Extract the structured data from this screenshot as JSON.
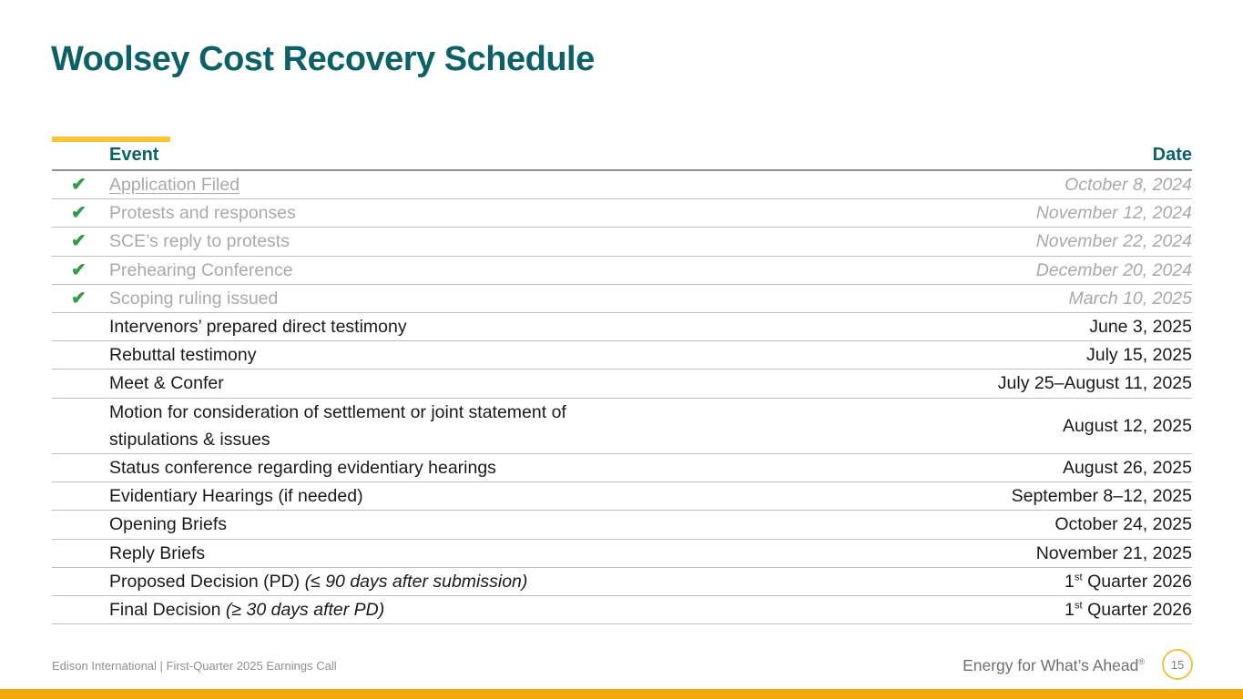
{
  "slide": {
    "title": "Woolsey Cost Recovery Schedule",
    "footer_left": "Edison International | First-Quarter 2025 Earnings Call",
    "tagline": "Energy for What’s Ahead",
    "tagline_reg": "®",
    "page_number": "15"
  },
  "colors": {
    "title_teal": "#0B6167",
    "accent_gold": "#FBC437",
    "bottom_bar_gold": "#F2A907",
    "badge_ring_gold": "#F0C43C",
    "check_green": "#2F9E44",
    "completed_gray": "#A9A9A9"
  },
  "table": {
    "check_glyph": "✔",
    "headers": {
      "event": "Event",
      "date": "Date"
    },
    "rows": [
      {
        "completed": true,
        "event": [
          {
            "text": "Application Filed",
            "underline": true
          }
        ],
        "date": [
          {
            "text": "October 8, 2024"
          }
        ]
      },
      {
        "completed": true,
        "event": [
          {
            "text": "Protests and responses"
          }
        ],
        "date": [
          {
            "text": "November 12, 2024"
          }
        ]
      },
      {
        "completed": true,
        "event": [
          {
            "text": "SCE’s reply to protests"
          }
        ],
        "date": [
          {
            "text": "November 22, 2024"
          }
        ]
      },
      {
        "completed": true,
        "event": [
          {
            "text": "Prehearing Conference"
          }
        ],
        "date": [
          {
            "text": "December 20, 2024"
          }
        ]
      },
      {
        "completed": true,
        "event": [
          {
            "text": "Scoping ruling issued"
          }
        ],
        "date": [
          {
            "text": "March 10, 2025"
          }
        ]
      },
      {
        "completed": false,
        "event": [
          {
            "text": "Intervenors’ prepared direct testimony"
          }
        ],
        "date": [
          {
            "text": "June 3, 2025"
          }
        ]
      },
      {
        "completed": false,
        "event": [
          {
            "text": "Rebuttal testimony"
          }
        ],
        "date": [
          {
            "text": "July 15, 2025"
          }
        ]
      },
      {
        "completed": false,
        "event": [
          {
            "text": "Meet & Confer"
          }
        ],
        "date": [
          {
            "text": "July 25–August 11, 2025"
          }
        ]
      },
      {
        "completed": false,
        "event": [
          {
            "text": "Motion for consideration of settlement or joint statement of"
          },
          {
            "br": true
          },
          {
            "text": "stipulations & issues"
          }
        ],
        "date": [
          {
            "text": "August 12, 2025"
          }
        ]
      },
      {
        "completed": false,
        "event": [
          {
            "text": "Status conference regarding evidentiary hearings"
          }
        ],
        "date": [
          {
            "text": "August 26, 2025"
          }
        ]
      },
      {
        "completed": false,
        "event": [
          {
            "text": "Evidentiary Hearings (if needed)"
          }
        ],
        "date": [
          {
            "text": "September 8–12, 2025"
          }
        ]
      },
      {
        "completed": false,
        "event": [
          {
            "text": "Opening Briefs"
          }
        ],
        "date": [
          {
            "text": "October 24, 2025"
          }
        ]
      },
      {
        "completed": false,
        "event": [
          {
            "text": "Reply Briefs"
          }
        ],
        "date": [
          {
            "text": "November 21, 2025"
          }
        ]
      },
      {
        "completed": false,
        "event": [
          {
            "text": "Proposed Decision (PD) "
          },
          {
            "text": "(≤ 90 days after submission)",
            "italic": true
          }
        ],
        "date": [
          {
            "text": "1"
          },
          {
            "text": "st",
            "sup": true
          },
          {
            "text": " Quarter 2026"
          }
        ]
      },
      {
        "completed": false,
        "event": [
          {
            "text": "Final Decision "
          },
          {
            "text": "(≥ 30 days after PD)",
            "italic": true
          }
        ],
        "date": [
          {
            "text": "1"
          },
          {
            "text": "st",
            "sup": true
          },
          {
            "text": " Quarter 2026"
          }
        ]
      }
    ]
  }
}
